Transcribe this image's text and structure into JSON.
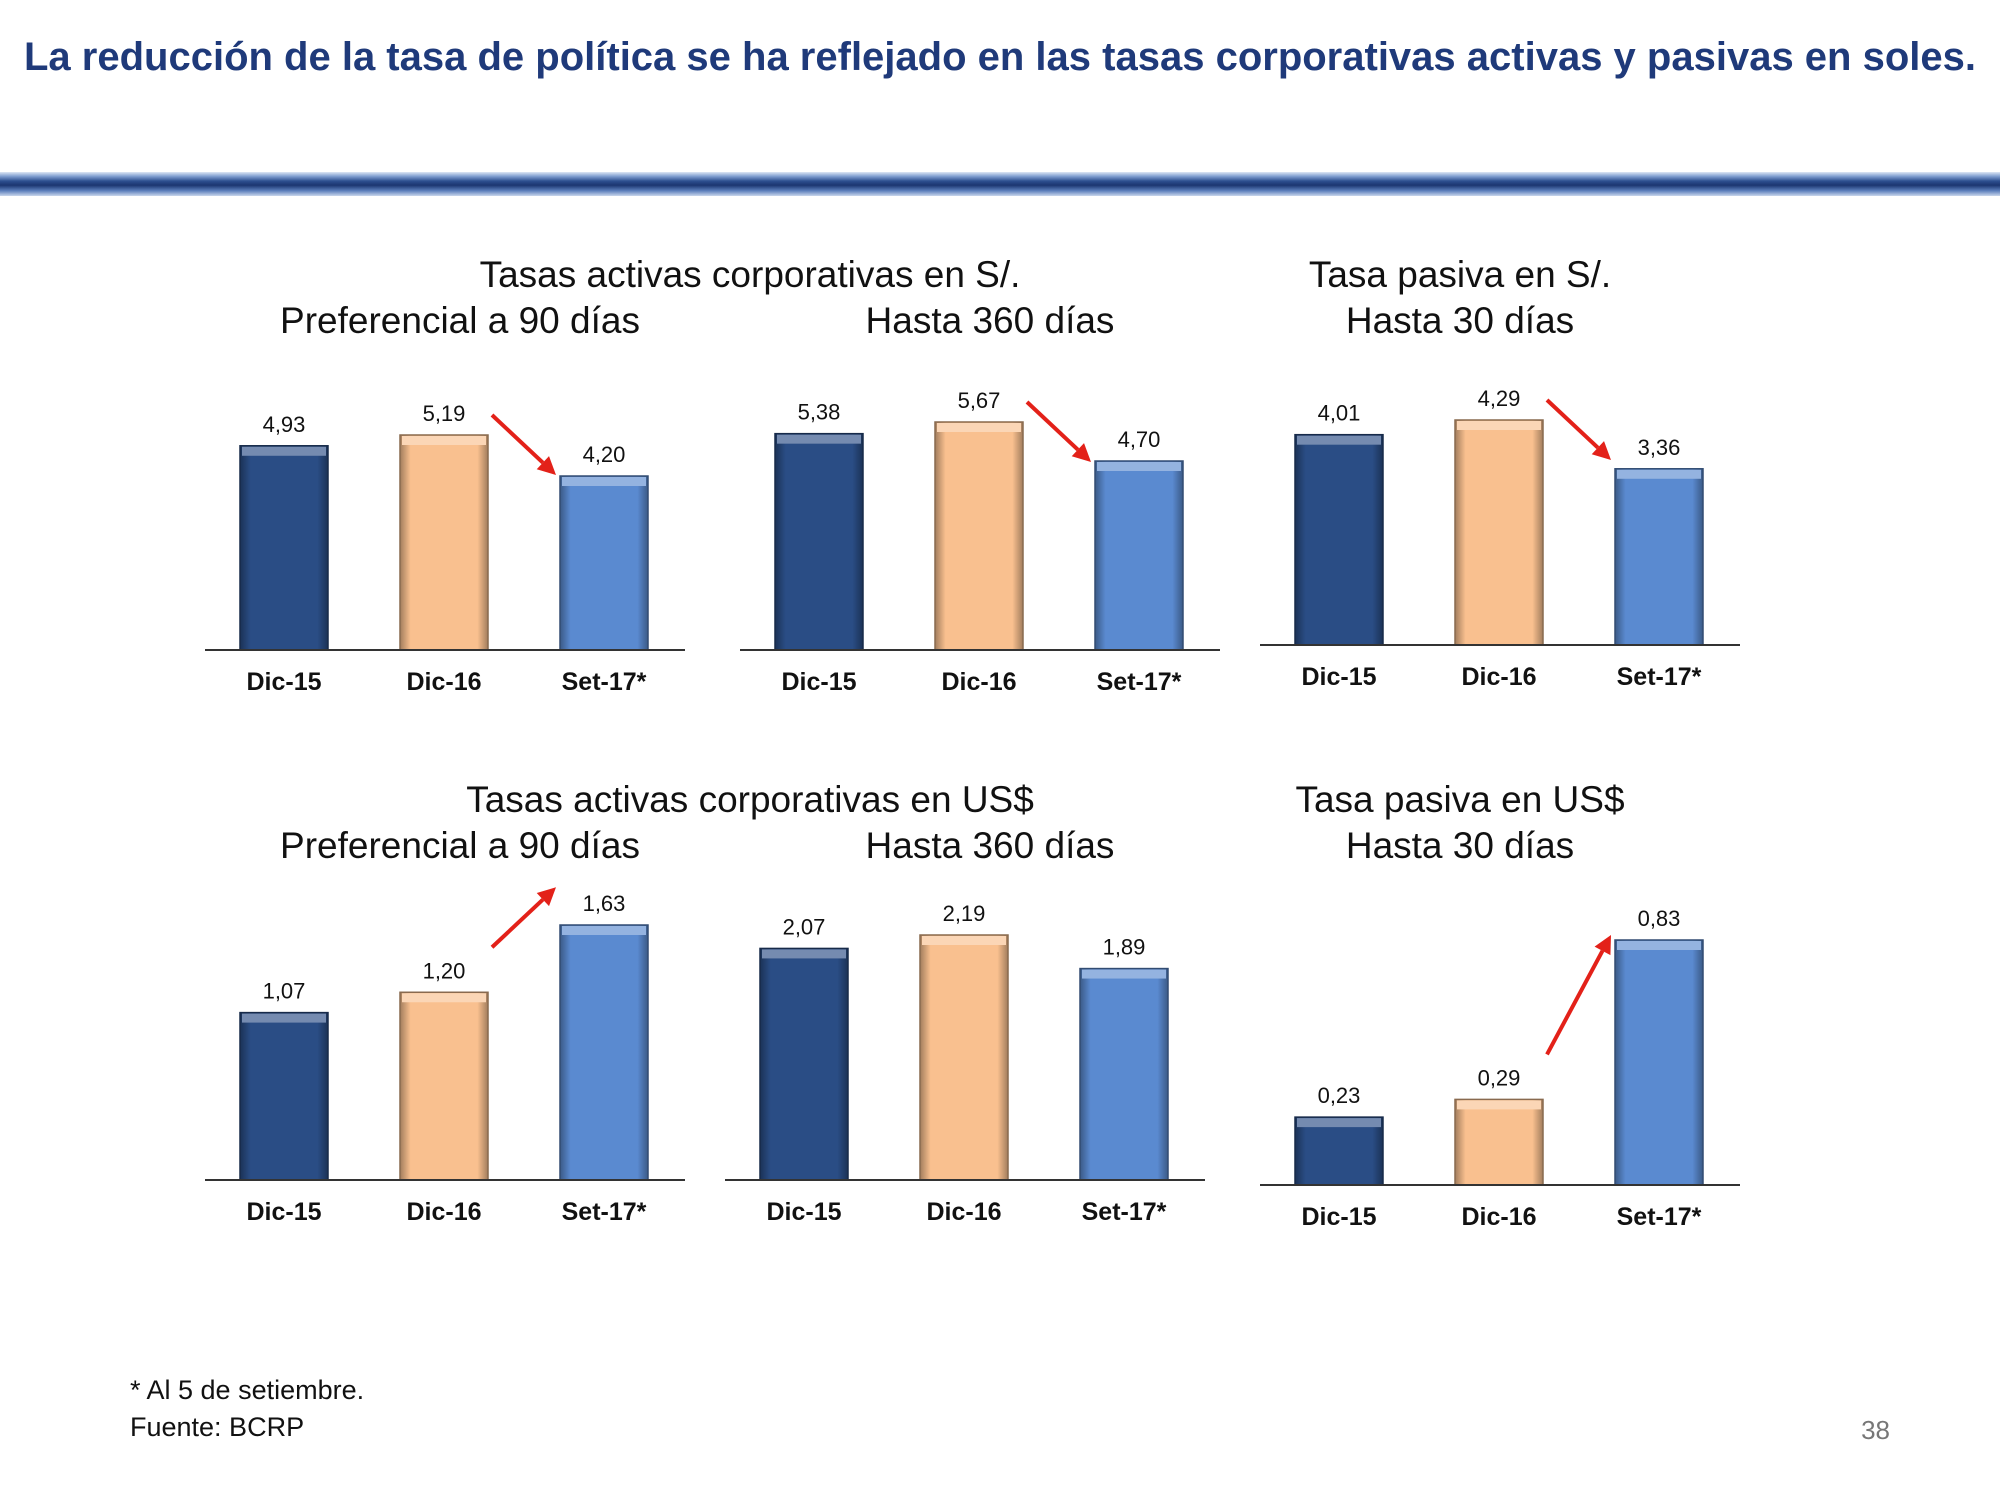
{
  "title": "La reducción de la tasa de política se ha reflejado en las tasas corporativas activas y pasivas en soles.",
  "groups": {
    "soles_activas": "Tasas activas corporativas en S/.",
    "soles_pasiva": "Tasa pasiva en S/.",
    "usd_activas": "Tasas activas corporativas en US$",
    "usd_pasiva": "Tasa pasiva en US$"
  },
  "colors": {
    "dic15": "#2a4d85",
    "dic16": "#f9c08f",
    "set17": "#5a8ad0",
    "arrow": "#e32119",
    "title": "#1f3a7a"
  },
  "chart_data": [
    {
      "id": "c1",
      "type": "bar",
      "group": "soles_activas",
      "title": "Preferencial a 90 días",
      "categories": [
        "Dic-15",
        "Dic-16",
        "Set-17*"
      ],
      "values": [
        4.93,
        5.19,
        4.2
      ],
      "value_labels": [
        "4,93",
        "5,19",
        "4,20"
      ],
      "trend": "down"
    },
    {
      "id": "c2",
      "type": "bar",
      "group": "soles_activas",
      "title": "Hasta 360 días",
      "categories": [
        "Dic-15",
        "Dic-16",
        "Set-17*"
      ],
      "values": [
        5.38,
        5.67,
        4.7
      ],
      "value_labels": [
        "5,38",
        "5,67",
        "4,70"
      ],
      "trend": "down"
    },
    {
      "id": "c3",
      "type": "bar",
      "group": "soles_pasiva",
      "title": "Hasta 30 días",
      "categories": [
        "Dic-15",
        "Dic-16",
        "Set-17*"
      ],
      "values": [
        4.01,
        4.29,
        3.36
      ],
      "value_labels": [
        "4,01",
        "4,29",
        "3,36"
      ],
      "trend": "down"
    },
    {
      "id": "c4",
      "type": "bar",
      "group": "usd_activas",
      "title": "Preferencial a 90 días",
      "categories": [
        "Dic-15",
        "Dic-16",
        "Set-17*"
      ],
      "values": [
        1.07,
        1.2,
        1.63
      ],
      "value_labels": [
        "1,07",
        "1,20",
        "1,63"
      ],
      "trend": "up"
    },
    {
      "id": "c5",
      "type": "bar",
      "group": "usd_activas",
      "title": "Hasta 360 días",
      "categories": [
        "Dic-15",
        "Dic-16",
        "Set-17*"
      ],
      "values": [
        2.07,
        2.19,
        1.89
      ],
      "value_labels": [
        "2,07",
        "2,19",
        "1,89"
      ],
      "trend": "none"
    },
    {
      "id": "c6",
      "type": "bar",
      "group": "usd_pasiva",
      "title": "Hasta 30 días",
      "categories": [
        "Dic-15",
        "Dic-16",
        "Set-17*"
      ],
      "values": [
        0.23,
        0.29,
        0.83
      ],
      "value_labels": [
        "0,23",
        "0,29",
        "0,83"
      ],
      "trend": "up"
    }
  ],
  "footnote": {
    "note": "* Al 5 de setiembre.",
    "source": "Fuente: BCRP"
  },
  "page_number": "38"
}
